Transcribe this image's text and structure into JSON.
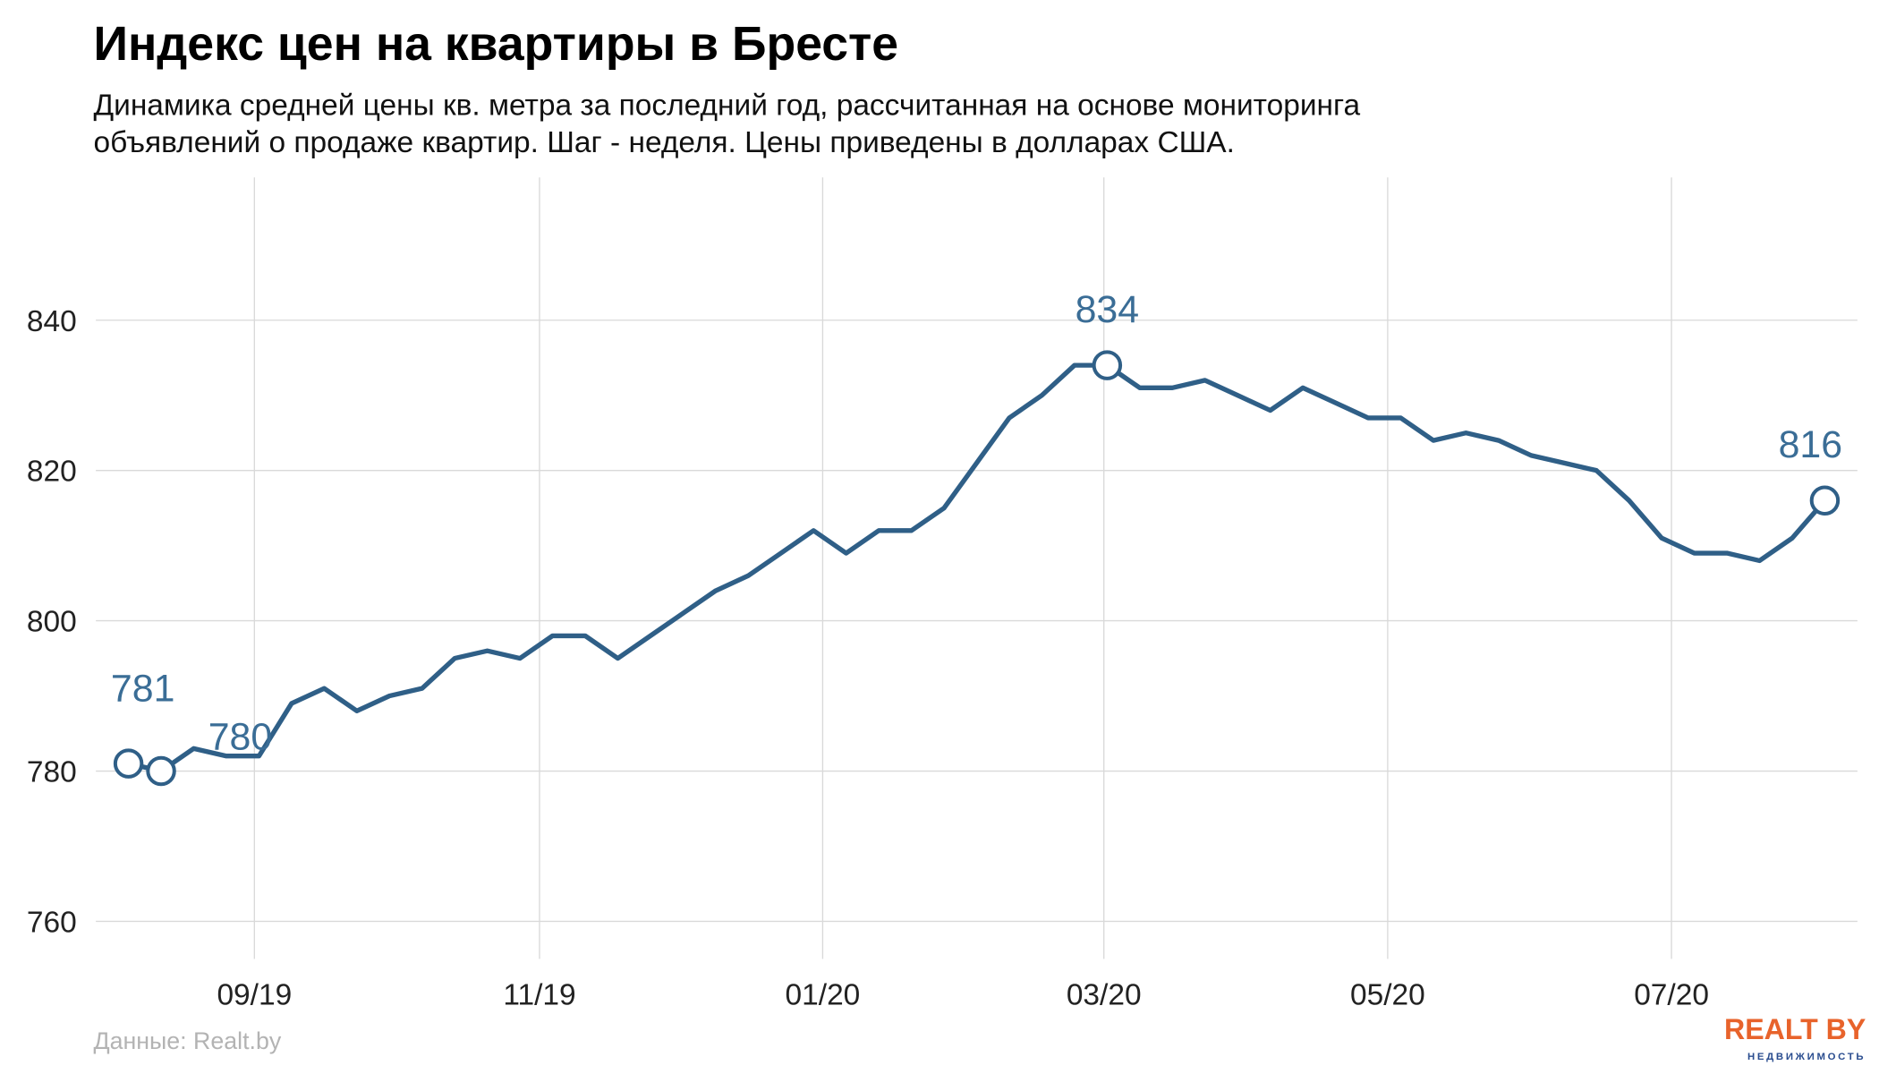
{
  "chart_data": {
    "type": "line",
    "title": "Индекс цен на квартиры в Бресте",
    "subtitle": [
      "Динамика средней цены кв. метра за последний год, рассчитанная на основе мониторинга",
      "объявлений о продаже квартир. Шаг - неделя. Цены приведены в долларах США."
    ],
    "source": "Данные: Realt.by",
    "logo": {
      "name": "REALT BY",
      "tagline": "НЕДВИЖИМОСТЬ"
    },
    "series": [
      {
        "color": "#2f5f87",
        "values": [
          781,
          780,
          783,
          782,
          782,
          789,
          791,
          788,
          790,
          791,
          795,
          796,
          795,
          798,
          798,
          795,
          798,
          801,
          804,
          806,
          809,
          812,
          809,
          812,
          812,
          815,
          821,
          827,
          830,
          834,
          834,
          831,
          831,
          832,
          830,
          828,
          831,
          829,
          827,
          827,
          824,
          825,
          824,
          822,
          821,
          820,
          816,
          811,
          809,
          809,
          808,
          811,
          816
        ]
      }
    ],
    "labeled_points": [
      0,
      1,
      30,
      52
    ],
    "xlim": [
      -1,
      53
    ],
    "xticks": [
      {
        "value": 3.86,
        "label": "09/19"
      },
      {
        "value": 12.6,
        "label": "11/19"
      },
      {
        "value": 21.28,
        "label": "01/20"
      },
      {
        "value": 29.9,
        "label": "03/20"
      },
      {
        "value": 38.6,
        "label": "05/20"
      },
      {
        "value": 47.3,
        "label": "07/20"
      }
    ],
    "ylim": [
      755,
      859
    ],
    "yticks": [
      760,
      780,
      800,
      820,
      840
    ],
    "grid": true
  }
}
